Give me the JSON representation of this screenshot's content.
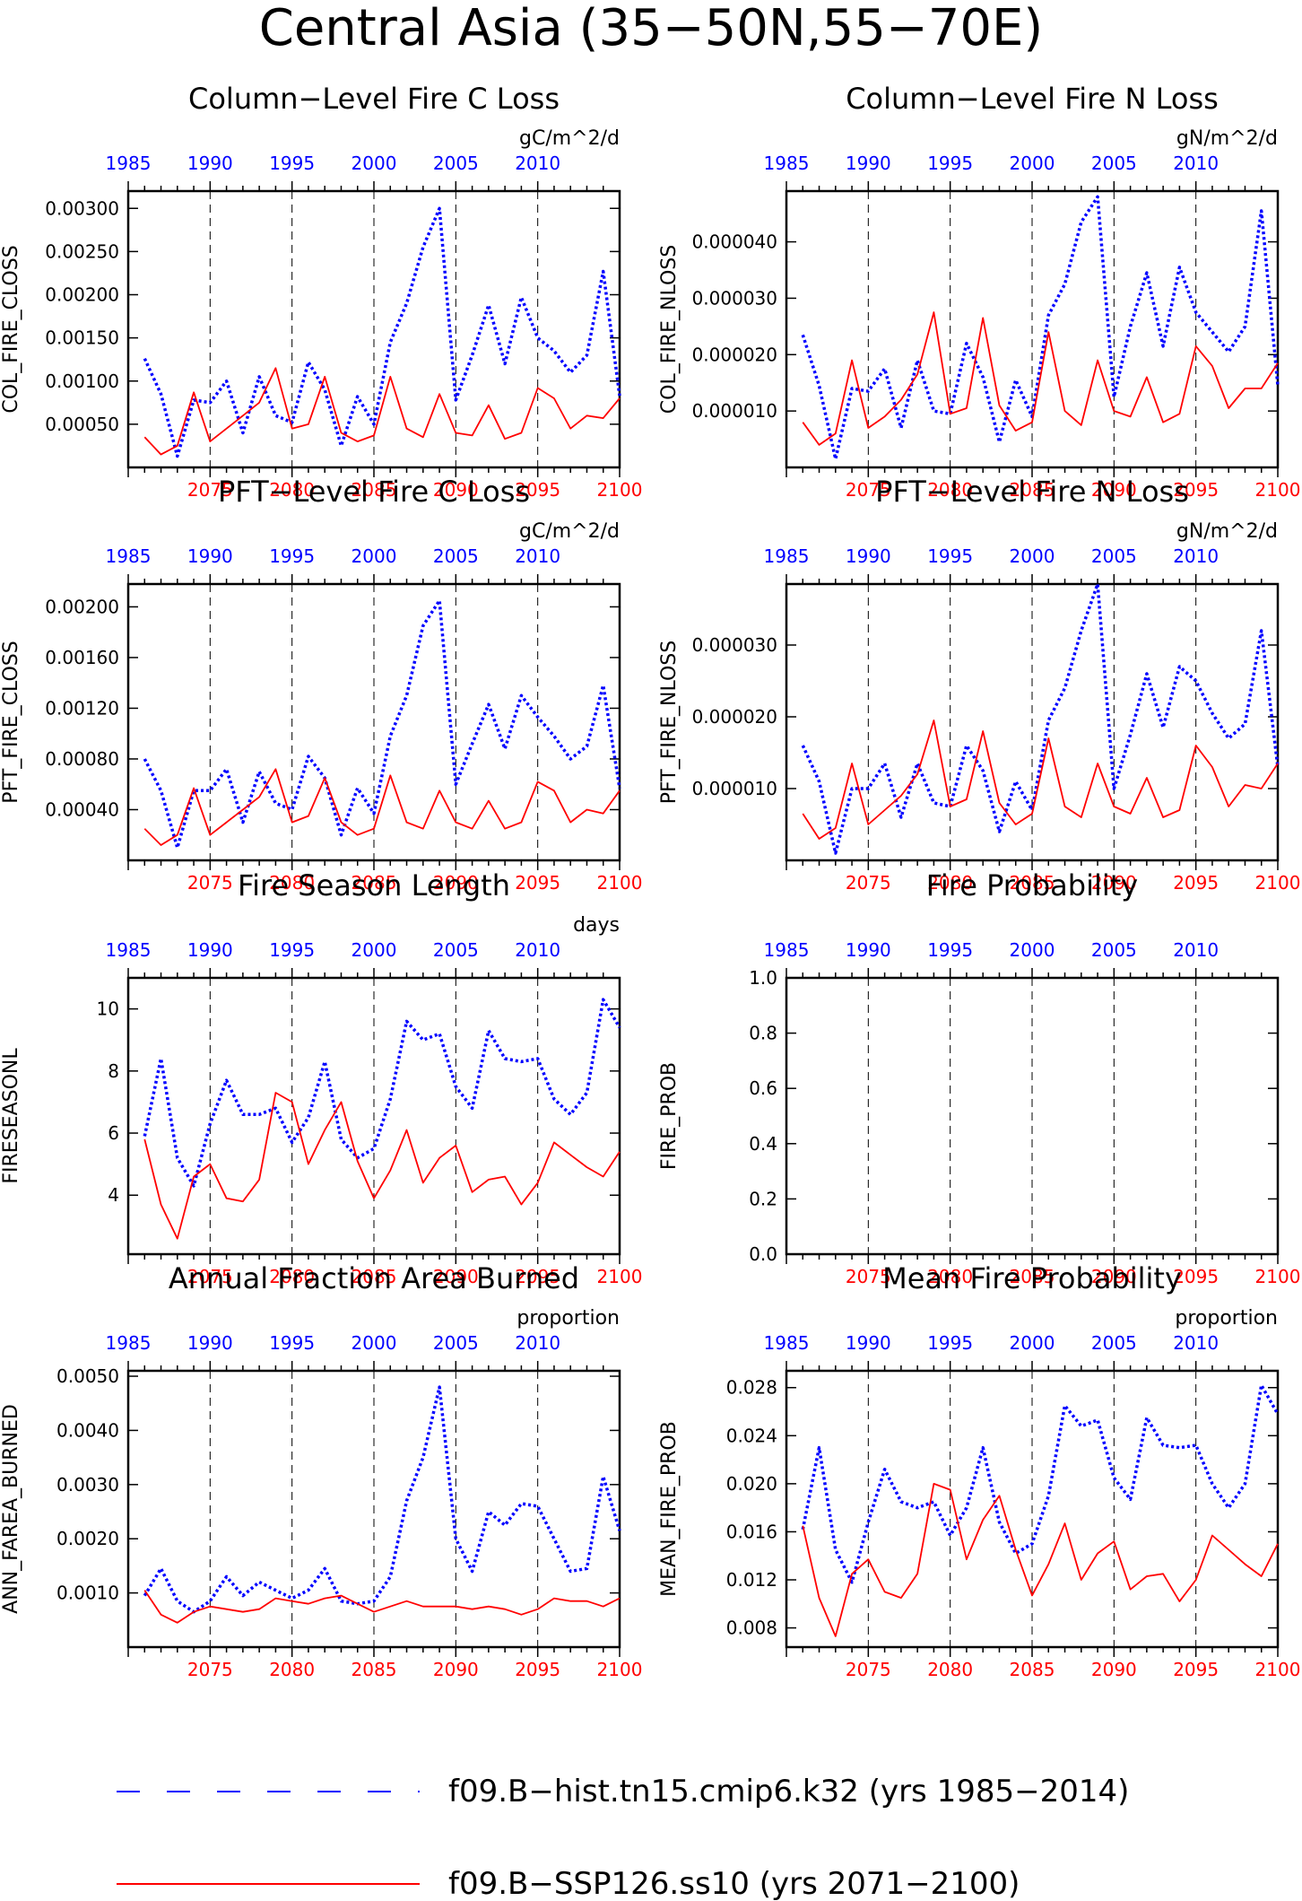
{
  "page_title": "Central Asia (35−50N,55−70E)",
  "colors": {
    "hist": "#0000ff",
    "ssp": "#ff0000",
    "axis": "#000000"
  },
  "hist_years": [
    1985,
    1986,
    1987,
    1988,
    1989,
    1990,
    1991,
    1992,
    1993,
    1994,
    1995,
    1996,
    1997,
    1998,
    1999,
    2000,
    2001,
    2002,
    2003,
    2004,
    2005,
    2006,
    2007,
    2008,
    2009,
    2010,
    2011,
    2012,
    2013,
    2014
  ],
  "ssp_years": [
    2071,
    2072,
    2073,
    2074,
    2075,
    2076,
    2077,
    2078,
    2079,
    2080,
    2081,
    2082,
    2083,
    2084,
    2085,
    2086,
    2087,
    2088,
    2089,
    2090,
    2091,
    2092,
    2093,
    2094,
    2095,
    2096,
    2097,
    2098,
    2099,
    2100
  ],
  "chart_data": [
    {
      "type": "line",
      "title": "Column−Level Fire C Loss",
      "ylabel": "COL_FIRE_CLOSS",
      "units": "gC/m^2/d",
      "ylim": [
        0,
        0.0032
      ],
      "yticks": [
        "0.00050",
        "0.00100",
        "0.00150",
        "0.00200",
        "0.00250",
        "0.00300"
      ],
      "x_top": [
        "1985",
        "1990",
        "1995",
        "2000",
        "2005",
        "2010"
      ],
      "x_bottom": [
        "2075",
        "2080",
        "2085",
        "2090",
        "2095",
        "2100"
      ],
      "series": [
        {
          "name": "f09.B−hist.tn15.cmip6.k32 (yrs 1985−2014)",
          "values": [
            0.00126,
            0.00085,
            0.00013,
            0.00078,
            0.00075,
            0.001,
            0.0004,
            0.00105,
            0.0006,
            0.00052,
            0.00122,
            0.0009,
            0.00025,
            0.00082,
            0.0005,
            0.00145,
            0.0019,
            0.00255,
            0.003,
            0.00078,
            0.0013,
            0.00188,
            0.0012,
            0.00197,
            0.0015,
            0.00135,
            0.0011,
            0.0013,
            0.00227,
            0.00083
          ]
        },
        {
          "name": "f09.B−SSP126.ss10 (yrs 2071−2100)",
          "values": [
            0.00035,
            0.00015,
            0.00025,
            0.00087,
            0.0003,
            0.00045,
            0.0006,
            0.00075,
            0.00115,
            0.00045,
            0.0005,
            0.00105,
            0.0004,
            0.0003,
            0.00037,
            0.00105,
            0.00045,
            0.00035,
            0.00085,
            0.0004,
            0.00037,
            0.00072,
            0.00033,
            0.0004,
            0.00092,
            0.0008,
            0.00045,
            0.0006,
            0.00057,
            0.0008
          ]
        }
      ]
    },
    {
      "type": "line",
      "title": "Column−Level Fire N Loss",
      "ylabel": "COL_FIRE_NLOSS",
      "units": "gN/m^2/d",
      "ylim": [
        0,
        4.9e-05
      ],
      "yticks": [
        "0.000010",
        "0.000020",
        "0.000030",
        "0.000040"
      ],
      "x_top": [
        "1985",
        "1990",
        "1995",
        "2000",
        "2005",
        "2010"
      ],
      "x_bottom": [
        "2075",
        "2080",
        "2085",
        "2090",
        "2095",
        "2100"
      ],
      "series": [
        {
          "name": "f09.B−hist.tn15.cmip6.k32 (yrs 1985−2014)",
          "values": [
            2.35e-05,
            1.45e-05,
            1.5e-06,
            1.4e-05,
            1.35e-05,
            1.75e-05,
            7e-06,
            1.9e-05,
            1e-05,
            9.5e-06,
            2.2e-05,
            1.6e-05,
            4.5e-06,
            1.55e-05,
            9e-06,
            2.7e-05,
            3.25e-05,
            4.35e-05,
            4.8e-05,
            1.25e-05,
            2.5e-05,
            3.45e-05,
            2.15e-05,
            3.55e-05,
            2.75e-05,
            2.4e-05,
            2.05e-05,
            2.5e-05,
            4.55e-05,
            1.45e-05
          ]
        },
        {
          "name": "f09.B−SSP126.ss10 (yrs 2071−2100)",
          "values": [
            8e-06,
            4e-06,
            6e-06,
            1.9e-05,
            7e-06,
            9e-06,
            1.2e-05,
            1.65e-05,
            2.75e-05,
            9.5e-06,
            1.05e-05,
            2.65e-05,
            1.1e-05,
            6.5e-06,
            8e-06,
            2.4e-05,
            1e-05,
            7.5e-06,
            1.9e-05,
            1e-05,
            9e-06,
            1.6e-05,
            8e-06,
            9.5e-06,
            2.15e-05,
            1.8e-05,
            1.05e-05,
            1.4e-05,
            1.4e-05,
            1.85e-05
          ]
        }
      ]
    },
    {
      "type": "line",
      "title": "PFT−Level Fire C Loss",
      "ylabel": "PFT_FIRE_CLOSS",
      "units": "gC/m^2/d",
      "ylim": [
        0,
        0.00218
      ],
      "yticks": [
        "0.00040",
        "0.00080",
        "0.00120",
        "0.00160",
        "0.00200"
      ],
      "x_top": [
        "1985",
        "1990",
        "1995",
        "2000",
        "2005",
        "2010"
      ],
      "x_bottom": [
        "2075",
        "2080",
        "2085",
        "2090",
        "2095",
        "2100"
      ],
      "series": [
        {
          "name": "f09.B−hist.tn15.cmip6.k32 (yrs 1985−2014)",
          "values": [
            0.0008,
            0.00055,
            0.0001,
            0.00055,
            0.00055,
            0.00072,
            0.0003,
            0.0007,
            0.00045,
            0.0004,
            0.00082,
            0.00065,
            0.0002,
            0.00057,
            0.00037,
            0.00098,
            0.0013,
            0.00185,
            0.00205,
            0.0006,
            0.00092,
            0.00123,
            0.00088,
            0.0013,
            0.00113,
            0.00098,
            0.0008,
            0.0009,
            0.00138,
            0.00057
          ]
        },
        {
          "name": "f09.B−SSP126.ss10 (yrs 2071−2100)",
          "values": [
            0.00025,
            0.00012,
            0.0002,
            0.00057,
            0.0002,
            0.0003,
            0.0004,
            0.0005,
            0.00072,
            0.0003,
            0.00035,
            0.00065,
            0.0003,
            0.0002,
            0.00025,
            0.00067,
            0.0003,
            0.00025,
            0.00055,
            0.0003,
            0.00025,
            0.00047,
            0.00025,
            0.0003,
            0.00062,
            0.00055,
            0.0003,
            0.0004,
            0.00037,
            0.00055
          ]
        }
      ]
    },
    {
      "type": "line",
      "title": "PFT−Level Fire N Loss",
      "ylabel": "PFT_FIRE_NLOSS",
      "units": "gN/m^2/d",
      "ylim": [
        0,
        3.85e-05
      ],
      "yticks": [
        "0.000010",
        "0.000020",
        "0.000030"
      ],
      "x_top": [
        "1985",
        "1990",
        "1995",
        "2000",
        "2005",
        "2010"
      ],
      "x_bottom": [
        "2075",
        "2080",
        "2085",
        "2090",
        "2095",
        "2100"
      ],
      "series": [
        {
          "name": "f09.B−hist.tn15.cmip6.k32 (yrs 1985−2014)",
          "values": [
            1.6e-05,
            1.1e-05,
            1e-06,
            1e-05,
            1e-05,
            1.35e-05,
            6e-06,
            1.35e-05,
            8e-06,
            7.5e-06,
            1.6e-05,
            1.25e-05,
            4e-06,
            1.1e-05,
            7e-06,
            1.95e-05,
            2.4e-05,
            3.2e-05,
            3.85e-05,
            1e-05,
            1.75e-05,
            2.6e-05,
            1.85e-05,
            2.7e-05,
            2.5e-05,
            2.05e-05,
            1.7e-05,
            1.9e-05,
            3.2e-05,
            1.3e-05
          ]
        },
        {
          "name": "f09.B−SSP126.ss10 (yrs 2071−2100)",
          "values": [
            6.5e-06,
            3e-06,
            4.5e-06,
            1.35e-05,
            5e-06,
            7e-06,
            9e-06,
            1.2e-05,
            1.95e-05,
            7.5e-06,
            8.5e-06,
            1.8e-05,
            8e-06,
            5e-06,
            6.5e-06,
            1.7e-05,
            7.5e-06,
            6e-06,
            1.35e-05,
            7.5e-06,
            6.5e-06,
            1.15e-05,
            6e-06,
            7e-06,
            1.6e-05,
            1.3e-05,
            7.5e-06,
            1.05e-05,
            1e-05,
            1.35e-05
          ]
        }
      ]
    },
    {
      "type": "line",
      "title": "Fire Season Length",
      "ylabel": "FIRESEASONL",
      "units": "days",
      "ylim": [
        2.1,
        11
      ],
      "yticks": [
        "4",
        "6",
        "8",
        "10"
      ],
      "x_top": [
        "1985",
        "1990",
        "1995",
        "2000",
        "2005",
        "2010"
      ],
      "x_bottom": [
        "2075",
        "2080",
        "2085",
        "2090",
        "2095",
        "2100"
      ],
      "series": [
        {
          "name": "f09.B−hist.tn15.cmip6.k32 (yrs 1985−2014)",
          "values": [
            5.9,
            8.4,
            5.2,
            4.3,
            6.3,
            7.7,
            6.6,
            6.6,
            6.8,
            5.7,
            6.5,
            8.3,
            5.8,
            5.2,
            5.5,
            7.1,
            9.6,
            9.0,
            9.2,
            7.5,
            6.8,
            9.3,
            8.4,
            8.3,
            8.4,
            7.1,
            6.6,
            7.3,
            10.3,
            9.4
          ]
        },
        {
          "name": "f09.B−SSP126.ss10 (yrs 2071−2100)",
          "values": [
            5.8,
            3.7,
            2.6,
            4.6,
            5.0,
            3.9,
            3.8,
            4.5,
            7.3,
            7.0,
            5.0,
            6.1,
            7.0,
            5.1,
            3.9,
            4.8,
            6.1,
            4.4,
            5.2,
            5.6,
            4.1,
            4.5,
            4.6,
            3.7,
            4.4,
            5.7,
            5.3,
            4.9,
            4.6,
            5.4
          ]
        }
      ]
    },
    {
      "type": "line",
      "title": "Fire Probability",
      "ylabel": "FIRE_PROB",
      "units": "",
      "ylim": [
        0,
        1
      ],
      "yticks": [
        "0.0",
        "0.2",
        "0.4",
        "0.6",
        "0.8",
        "1.0"
      ],
      "x_top": [
        "1985",
        "1990",
        "1995",
        "2000",
        "2005",
        "2010"
      ],
      "x_bottom": [
        "2075",
        "2080",
        "2085",
        "2090",
        "2095",
        "2100"
      ],
      "series": []
    },
    {
      "type": "line",
      "title": "Annual Fraction Area Burned",
      "ylabel": "ANN_FAREA_BURNED",
      "units": "proportion",
      "ylim": [
        0,
        0.0051
      ],
      "yticks": [
        "0.0010",
        "0.0020",
        "0.0030",
        "0.0040",
        "0.0050"
      ],
      "x_top": [
        "1985",
        "1990",
        "1995",
        "2000",
        "2005",
        "2010"
      ],
      "x_bottom": [
        "2075",
        "2080",
        "2085",
        "2090",
        "2095",
        "2100"
      ],
      "series": [
        {
          "name": "f09.B−hist.tn15.cmip6.k32 (yrs 1985−2014)",
          "values": [
            0.00095,
            0.00145,
            0.00085,
            0.00065,
            0.00085,
            0.0013,
            0.00095,
            0.0012,
            0.00105,
            0.0009,
            0.00105,
            0.00145,
            0.00085,
            0.0008,
            0.00085,
            0.0013,
            0.0027,
            0.0035,
            0.0048,
            0.002,
            0.0014,
            0.0025,
            0.00225,
            0.00265,
            0.0026,
            0.002,
            0.0014,
            0.00145,
            0.00315,
            0.00215
          ]
        },
        {
          "name": "f09.B−SSP126.ss10 (yrs 2071−2100)",
          "values": [
            0.00105,
            0.0006,
            0.00045,
            0.00065,
            0.00075,
            0.0007,
            0.00065,
            0.0007,
            0.0009,
            0.00085,
            0.0008,
            0.0009,
            0.00095,
            0.0008,
            0.00065,
            0.00075,
            0.00085,
            0.00075,
            0.00075,
            0.00075,
            0.0007,
            0.00075,
            0.0007,
            0.0006,
            0.0007,
            0.0009,
            0.00085,
            0.00085,
            0.00075,
            0.0009
          ]
        }
      ]
    },
    {
      "type": "line",
      "title": "Mean Fire Probability",
      "ylabel": "MEAN_FIRE_PROB",
      "units": "proportion",
      "ylim": [
        0.0064,
        0.0294
      ],
      "yticks": [
        "0.008",
        "0.012",
        "0.016",
        "0.020",
        "0.024",
        "0.028"
      ],
      "x_top": [
        "1985",
        "1990",
        "1995",
        "2000",
        "2005",
        "2010"
      ],
      "x_bottom": [
        "2075",
        "2080",
        "2085",
        "2090",
        "2095",
        "2100"
      ],
      "series": [
        {
          "name": "f09.B−hist.tn15.cmip6.k32 (yrs 1985−2014)",
          "values": [
            0.0162,
            0.023,
            0.0145,
            0.0118,
            0.0168,
            0.0212,
            0.0185,
            0.018,
            0.0185,
            0.0157,
            0.018,
            0.023,
            0.0168,
            0.0142,
            0.015,
            0.019,
            0.0265,
            0.0248,
            0.0253,
            0.0205,
            0.0187,
            0.0255,
            0.0232,
            0.023,
            0.0232,
            0.02,
            0.018,
            0.02,
            0.0282,
            0.0258
          ]
        },
        {
          "name": "f09.B−SSP126.ss10 (yrs 2071−2100)",
          "values": [
            0.0165,
            0.0105,
            0.0073,
            0.0125,
            0.0137,
            0.011,
            0.0105,
            0.0125,
            0.02,
            0.0195,
            0.0137,
            0.017,
            0.019,
            0.0145,
            0.0107,
            0.0133,
            0.0167,
            0.012,
            0.0142,
            0.0152,
            0.0112,
            0.0123,
            0.0125,
            0.0102,
            0.012,
            0.0157,
            0.0145,
            0.0133,
            0.0123,
            0.015
          ]
        }
      ]
    }
  ],
  "legend": {
    "items": [
      {
        "label": "f09.B−hist.tn15.cmip6.k32 (yrs 1985−2014)"
      },
      {
        "label": "f09.B−SSP126.ss10 (yrs 2071−2100)"
      }
    ]
  }
}
